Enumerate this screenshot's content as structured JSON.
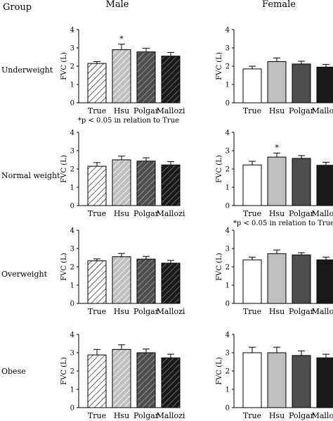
{
  "headers": {
    "group": "Group",
    "male": "Male",
    "female": "Female"
  },
  "categories": [
    "True",
    "Hsu",
    "Polgar",
    "Mallozi"
  ],
  "fills": {
    "True": "#ffffff",
    "Hsu": "#bfbfbf",
    "Polgar": "#4d4d4d",
    "Mallozi": "#1a1a1a"
  },
  "hatch_colors": {
    "hsu_line": "#ffffff",
    "stroke": "#000000"
  },
  "chart_data": [
    {
      "type": "bar",
      "group": "Underweight",
      "sex": "Male",
      "ylabel": "FVC (L)",
      "ylim": [
        0,
        4
      ],
      "yticks": [
        0,
        1,
        2,
        3,
        4
      ],
      "categories": [
        "True",
        "Hsu",
        "Polgar",
        "Mallozi"
      ],
      "values": [
        2.15,
        2.9,
        2.78,
        2.55
      ],
      "errors": [
        0.1,
        0.3,
        0.2,
        0.2
      ],
      "pattern": "hatched",
      "star_on": "Hsu",
      "note": "*p < 0.05 in relation to True"
    },
    {
      "type": "bar",
      "group": "Underweight",
      "sex": "Female",
      "ylabel": "FVC (L)",
      "ylim": [
        0,
        4
      ],
      "yticks": [
        0,
        1,
        2,
        3,
        4
      ],
      "categories": [
        "True",
        "Hsu",
        "Polgar",
        "Mallozi"
      ],
      "values": [
        1.85,
        2.25,
        2.12,
        1.95
      ],
      "errors": [
        0.15,
        0.2,
        0.15,
        0.15
      ],
      "pattern": "solid"
    },
    {
      "type": "bar",
      "group": "Normal weight",
      "sex": "Male",
      "ylabel": "FVC (L)",
      "ylim": [
        0,
        4
      ],
      "yticks": [
        0,
        1,
        2,
        3,
        4
      ],
      "categories": [
        "True",
        "Hsu",
        "Polgar",
        "Mallozi"
      ],
      "values": [
        2.15,
        2.5,
        2.43,
        2.22
      ],
      "errors": [
        0.2,
        0.2,
        0.18,
        0.18
      ],
      "pattern": "hatched"
    },
    {
      "type": "bar",
      "group": "Normal weight",
      "sex": "Female",
      "ylabel": "FVC (L)",
      "ylim": [
        0,
        4
      ],
      "yticks": [
        0,
        1,
        2,
        3,
        4
      ],
      "categories": [
        "True",
        "Hsu",
        "Polgar",
        "Mallozi"
      ],
      "values": [
        2.22,
        2.65,
        2.58,
        2.2
      ],
      "errors": [
        0.2,
        0.22,
        0.15,
        0.17
      ],
      "pattern": "solid",
      "star_on": "Hsu",
      "note": "*p < 0.05 in relation to True"
    },
    {
      "type": "bar",
      "group": "Overweight",
      "sex": "Male",
      "ylabel": "FVC (L)",
      "ylim": [
        0,
        4
      ],
      "yticks": [
        0,
        1,
        2,
        3,
        4
      ],
      "categories": [
        "True",
        "Hsu",
        "Polgar",
        "Mallozi"
      ],
      "values": [
        2.33,
        2.55,
        2.42,
        2.2
      ],
      "errors": [
        0.1,
        0.18,
        0.15,
        0.15
      ],
      "pattern": "hatched"
    },
    {
      "type": "bar",
      "group": "Overweight",
      "sex": "Female",
      "ylabel": "FVC (L)",
      "ylim": [
        0,
        4
      ],
      "yticks": [
        0,
        1,
        2,
        3,
        4
      ],
      "categories": [
        "True",
        "Hsu",
        "Polgar",
        "Mallozi"
      ],
      "values": [
        2.38,
        2.72,
        2.65,
        2.38
      ],
      "errors": [
        0.15,
        0.2,
        0.12,
        0.15
      ],
      "pattern": "solid"
    },
    {
      "type": "bar",
      "group": "Obese",
      "sex": "Male",
      "ylabel": "FVC (L)",
      "ylim": [
        0,
        4
      ],
      "yticks": [
        0,
        1,
        2,
        3,
        4
      ],
      "categories": [
        "True",
        "Hsu",
        "Polgar",
        "Mallozi"
      ],
      "values": [
        2.88,
        3.18,
        3.0,
        2.72
      ],
      "errors": [
        0.3,
        0.25,
        0.2,
        0.2
      ],
      "pattern": "hatched"
    },
    {
      "type": "bar",
      "group": "Obese",
      "sex": "Female",
      "ylabel": "FVC (L)",
      "ylim": [
        0,
        4
      ],
      "yticks": [
        0,
        1,
        2,
        3,
        4
      ],
      "categories": [
        "True",
        "Hsu",
        "Polgar",
        "Mallozi"
      ],
      "values": [
        3.0,
        3.0,
        2.85,
        2.72
      ],
      "errors": [
        0.3,
        0.3,
        0.25,
        0.2
      ],
      "pattern": "solid"
    }
  ]
}
